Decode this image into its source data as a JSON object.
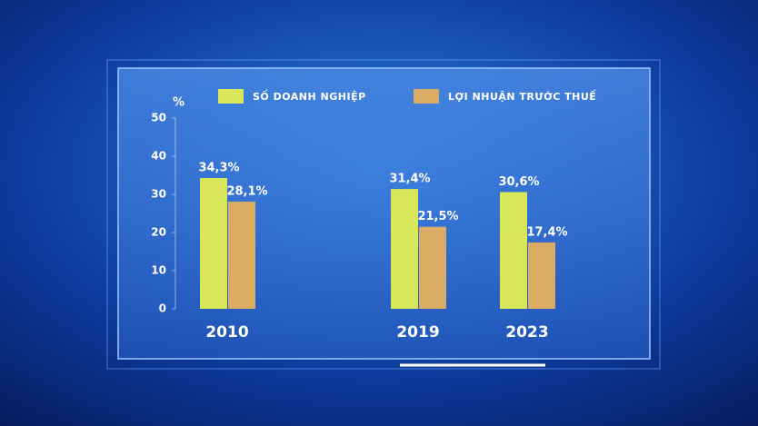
{
  "chart_data": {
    "type": "bar",
    "y_label": "%",
    "categories": [
      "2010",
      "2019",
      "2023"
    ],
    "series": [
      {
        "name": "SỐ DOANH NGHIỆP",
        "color": "#d8e65a",
        "values": [
          34.3,
          31.4,
          30.6
        ],
        "value_labels": [
          "34,3%",
          "31,4%",
          "30,6%"
        ]
      },
      {
        "name": "LỢI NHUẬN TRƯỚC THUẾ",
        "color": "#d9ab63",
        "values": [
          28.1,
          21.5,
          17.4
        ],
        "value_labels": [
          "28,1%",
          "21,5%",
          "17,4%"
        ]
      }
    ],
    "ylim": [
      0,
      50
    ],
    "yticks": [
      0,
      10,
      20,
      30,
      40,
      50
    ],
    "legend": "top"
  }
}
